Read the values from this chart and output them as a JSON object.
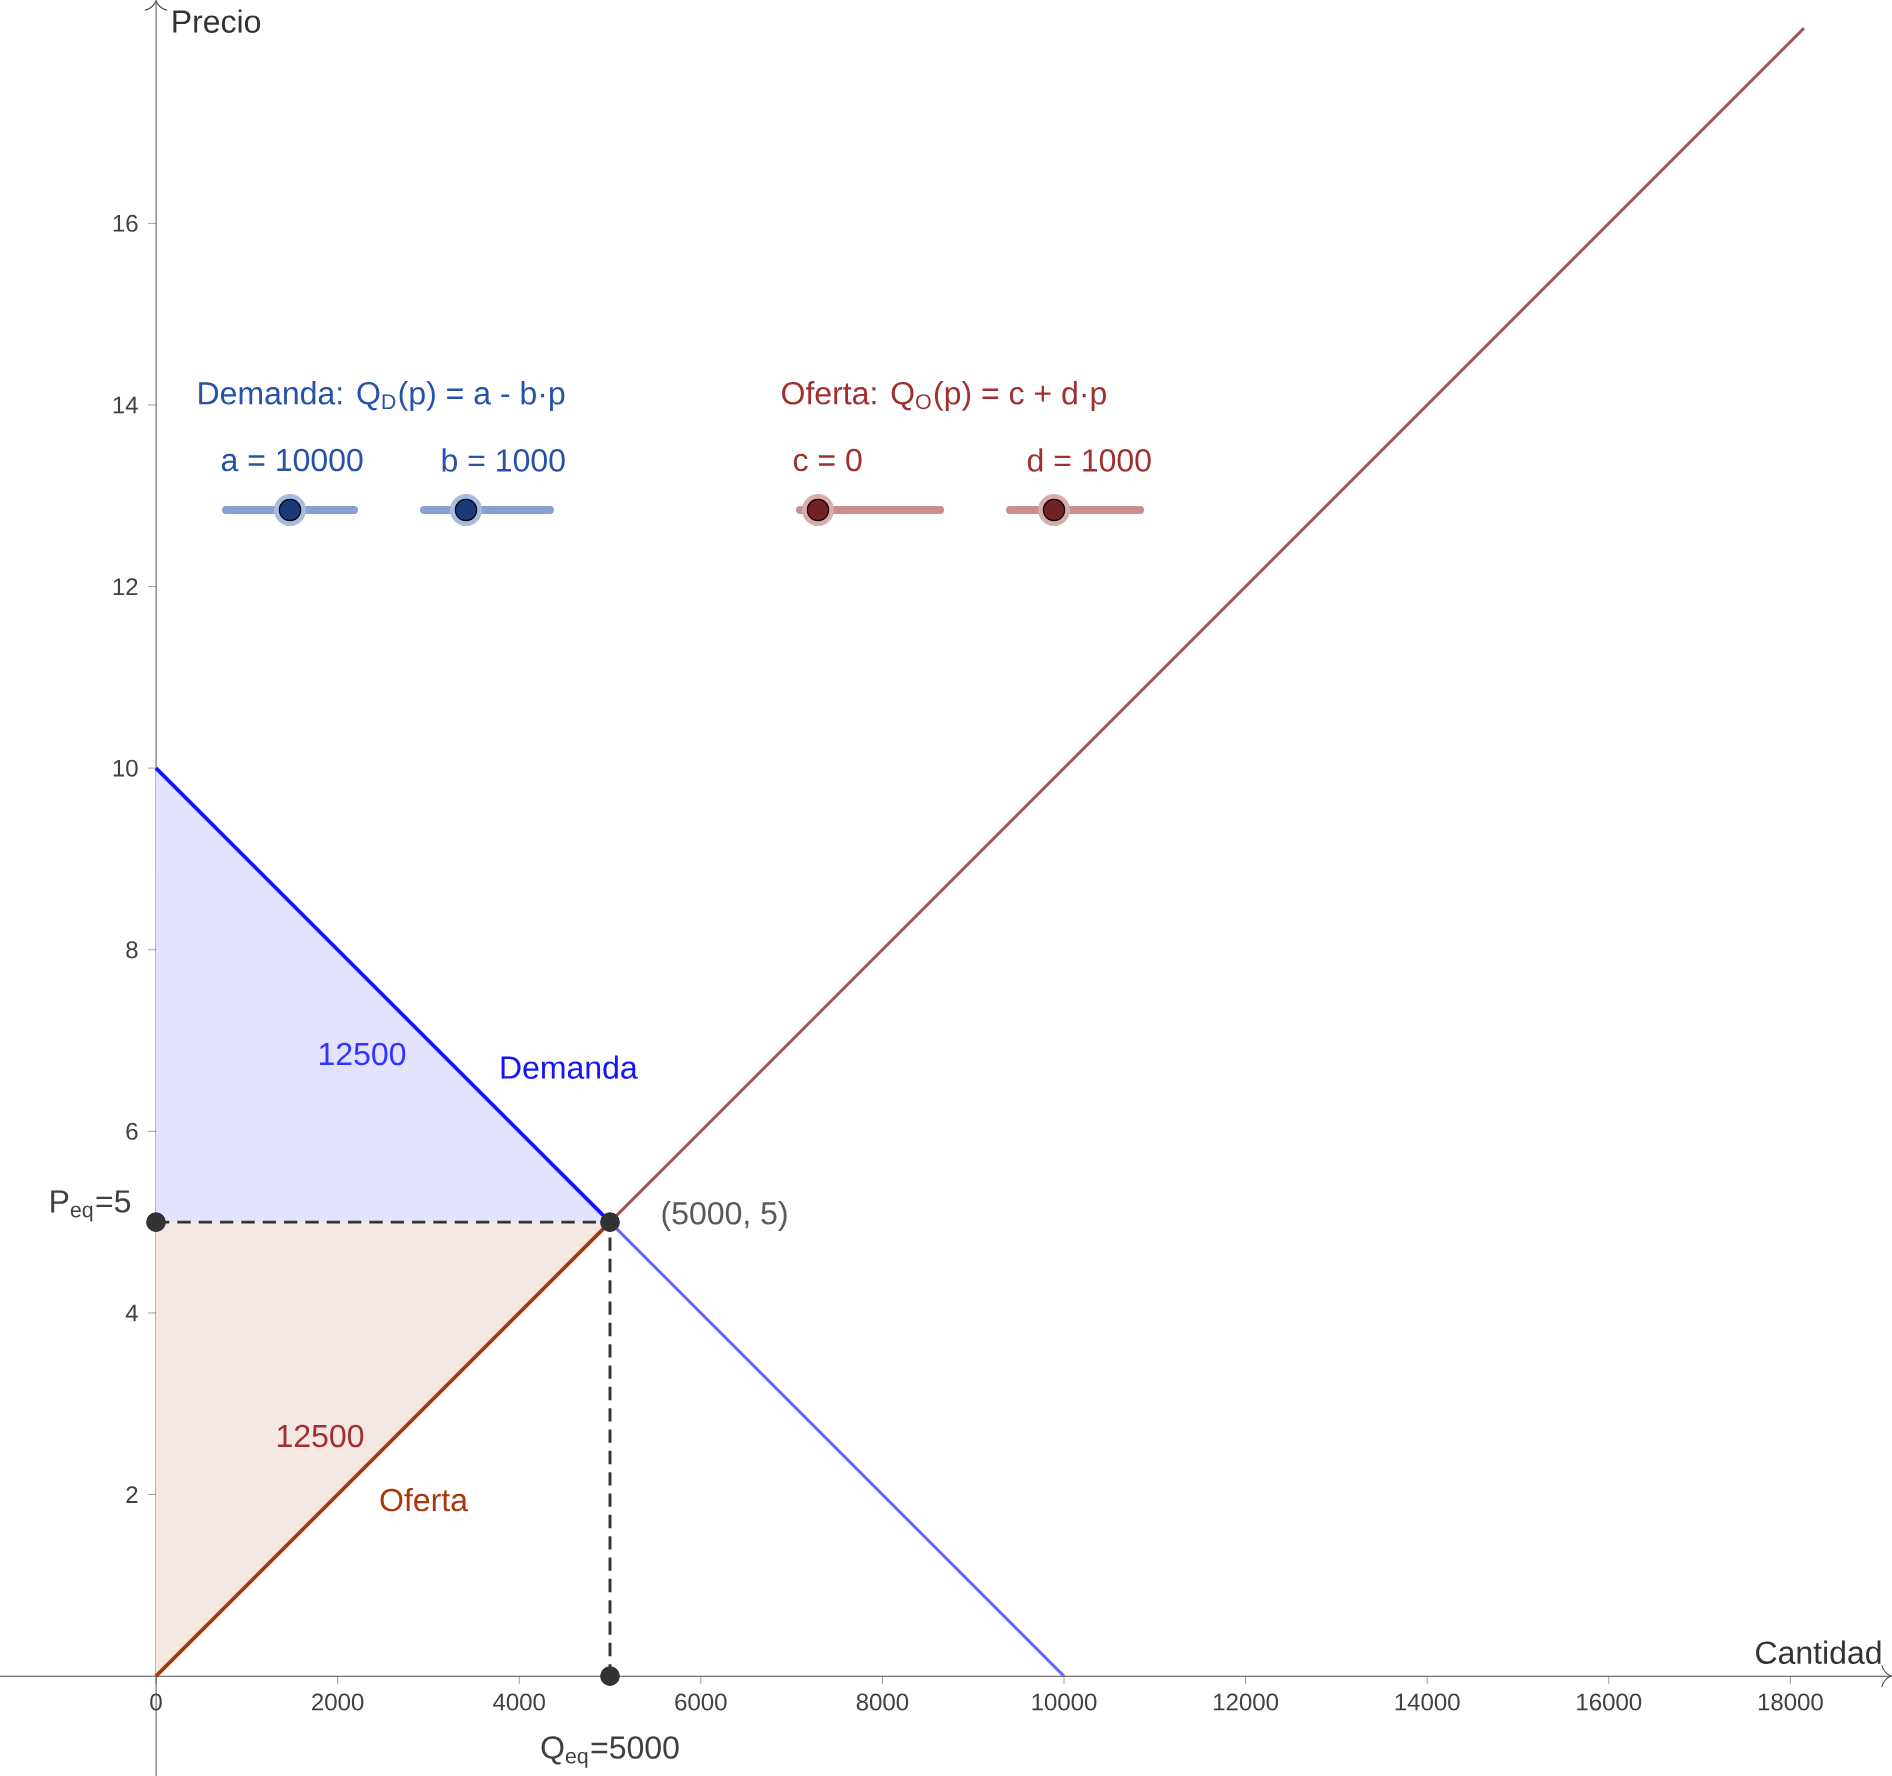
{
  "chart_data": {
    "type": "line",
    "xlabel": "Cantidad",
    "ylabel": "Precio",
    "xlim": [
      -1718,
      19119
    ],
    "ylim": [
      -1.1,
      18.46
    ],
    "xticks": [
      0,
      2000,
      4000,
      6000,
      8000,
      10000,
      12000,
      14000,
      16000,
      18000
    ],
    "yticks": [
      2,
      4,
      6,
      8,
      10,
      12,
      14,
      16
    ],
    "series": [
      {
        "name": "Demanda",
        "color": "#1414ff",
        "x": [
          0,
          5000
        ],
        "values": [
          10,
          5
        ],
        "lower": [
          5,
          5
        ],
        "upper": [
          10,
          5
        ]
      },
      {
        "color": "#6464ff",
        "x": [
          5000,
          10000
        ],
        "values": [
          5,
          0
        ]
      },
      {
        "name": "Oferta",
        "color": "#a8380c",
        "x": [
          0,
          5000
        ],
        "values": [
          0,
          5
        ],
        "lower": [
          0,
          5
        ],
        "upper": [
          5,
          5
        ]
      },
      {
        "color": "#a65353",
        "x": [
          5000,
          18150
        ],
        "values": [
          5,
          18.15
        ]
      },
      {
        "color": "#333333",
        "line_style": "dashed",
        "x": [
          0,
          5000,
          5000
        ],
        "values": [
          5,
          5,
          0
        ]
      },
      {
        "type": "scatter",
        "color": "#333333",
        "marker": "circle",
        "x": [
          0,
          5000,
          5000
        ],
        "values": [
          5,
          5,
          0
        ]
      }
    ],
    "annotations": [
      "12500",
      "12500",
      "(5000, 5)",
      "P$_{eq}$=5",
      "Q$_{eq}$=5000",
      "Demanda: Q$_{D}$(p) = a - b·p",
      "a = 10000",
      "b = 1000",
      "Oferta: Q$_{O}$(p) = c + d·p",
      "c = 0",
      "d = 1000"
    ]
  }
}
